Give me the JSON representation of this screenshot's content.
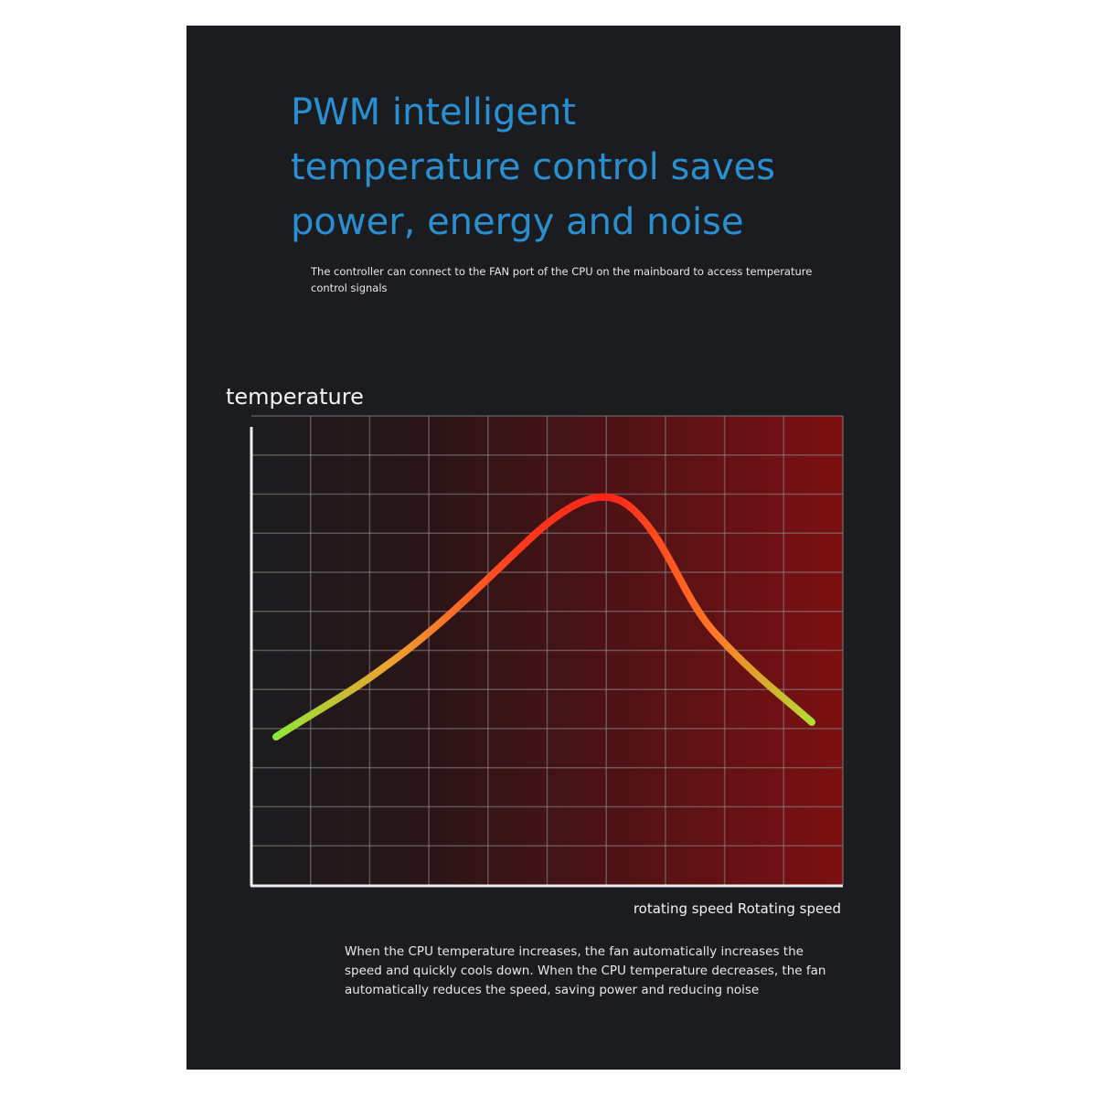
{
  "header": {
    "title_lines": [
      "PWM intelligent",
      "temperature control saves",
      "power, energy and noise"
    ],
    "subtitle": "The controller can connect to the FAN port of the CPU on the mainboard to access temperature control signals"
  },
  "diagram": {
    "y_label": "temperature",
    "x_label": "rotating speed Rotating speed"
  },
  "footer": {
    "text": "When the CPU temperature increases, the fan automatically increases the speed and quickly cools down. When the CPU temperature decreases, the fan automatically reduces the speed, saving power and reducing noise"
  }
}
